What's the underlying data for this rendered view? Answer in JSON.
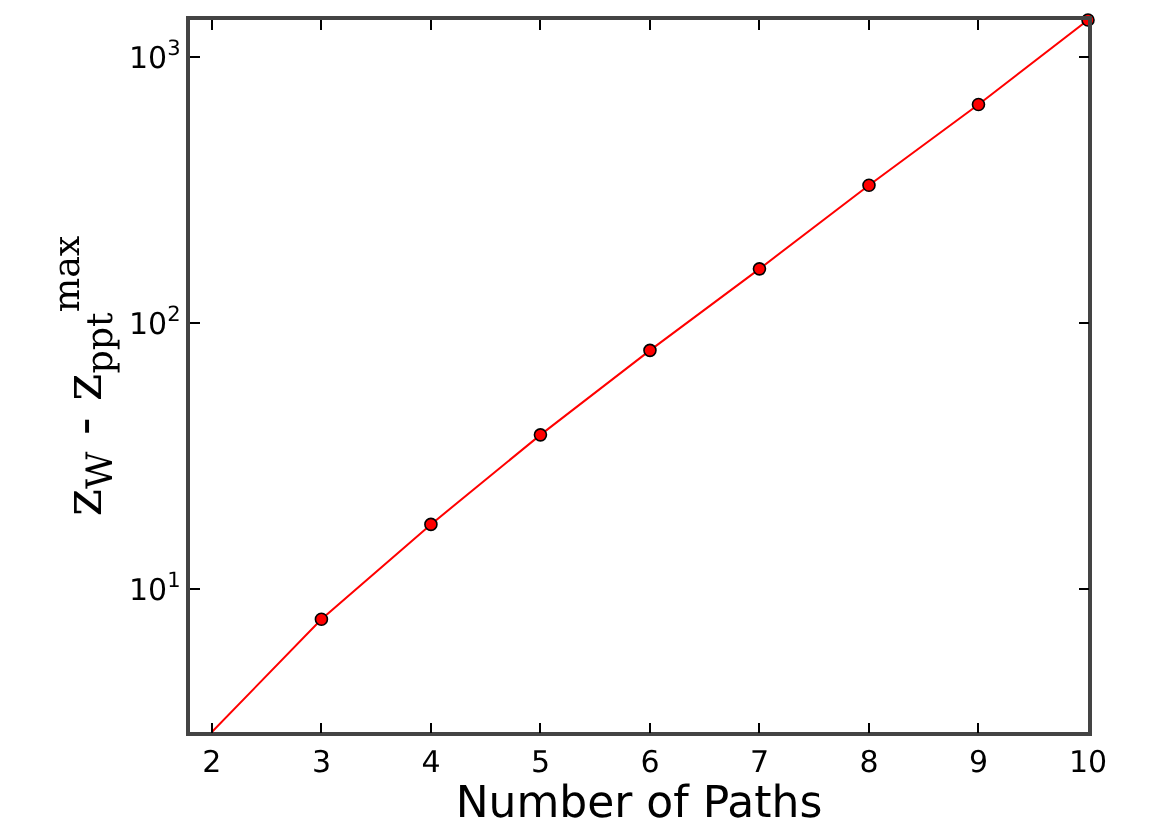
{
  "chart_data": {
    "type": "line",
    "xlabel": "Number of Paths",
    "ylabel": "z$_{W}$ - z$_{ppt}$$^{max}$",
    "x": [
      2,
      3,
      4,
      5,
      6,
      7,
      8,
      9,
      10
    ],
    "series": [
      {
        "color": "#ff0000",
        "values": [
          2.9,
          7.7,
          17.5,
          38,
          79,
          160,
          330,
          664,
          1380
        ]
      }
    ],
    "marker": "circle",
    "log": "y",
    "xlim": [
      1.8,
      10
    ],
    "xticks": [
      2,
      3,
      4,
      5,
      6,
      7,
      8,
      9,
      10
    ],
    "ylim": [
      2.9,
      1380
    ],
    "yticks": [
      {
        "value": 10,
        "label": "10$^{1}$"
      },
      {
        "value": 100,
        "label": "10$^{2}$"
      },
      {
        "value": 1000,
        "label": "10$^{3}$"
      }
    ]
  }
}
